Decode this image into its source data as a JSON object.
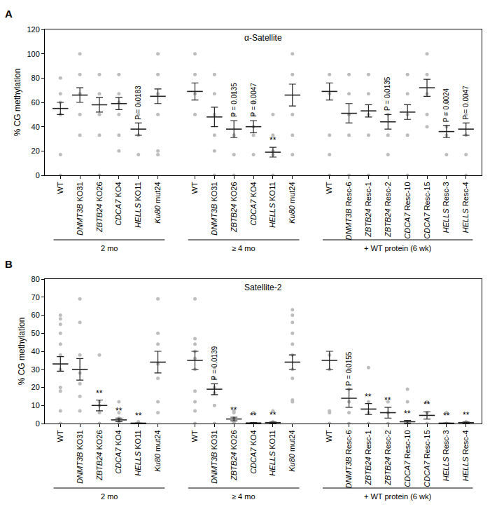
{
  "chart_data": [
    {
      "type": "scatter",
      "panel": "A",
      "title": "α-Satellite",
      "ylabel": "% CG methylation",
      "categories": [
        "WT",
        "DNMT3B KO31",
        "ZBTB24 KO26",
        "CDCA7 KO4",
        "HELLS KO11",
        "Ku80 mut24",
        "WT",
        "DNMT3B KO31",
        "ZBTB24 KO26",
        "CDCA7 KO4",
        "HELLS KO11",
        "Ku80 mut24",
        "WT",
        "DNMT3B Resc-6",
        "ZBTB24 Resc-1",
        "ZBTB24 Resc-2",
        "CDCA7 Resc-10",
        "CDCA7 Resc-15",
        "HELLS Resc-3",
        "HELLS Resc-4"
      ],
      "groups": [
        {
          "label": "2 mo",
          "size": 6
        },
        {
          "label": "≥ 4 mo",
          "size": 6
        },
        {
          "label": "+ WT protein (6 wk)",
          "size": 8
        }
      ],
      "ylim": [
        0,
        120
      ],
      "yticks": [
        0,
        20,
        40,
        60,
        80,
        100,
        120
      ],
      "grid": false,
      "series": [
        {
          "type": "strip",
          "marker": "circle",
          "color": "#bdbdbd",
          "values": [
            [
              0,
              17,
              50,
              50,
              60,
              67,
              80
            ],
            [
              33,
              50,
              67,
              83,
              100
            ],
            [
              0,
              33,
              50,
              67,
              83
            ],
            [
              20,
              33,
              50,
              60,
              67,
              83
            ],
            [
              17,
              33,
              50,
              60
            ],
            [
              17,
              20,
              50,
              67,
              83,
              100
            ],
            [
              50,
              67,
              83,
              100
            ],
            [
              0,
              20,
              33,
              50,
              67,
              83
            ],
            [
              0,
              17,
              33,
              50,
              67
            ],
            [
              17,
              33,
              40,
              50,
              60
            ],
            [
              0,
              17,
              20,
              33,
              50
            ],
            [
              17,
              33,
              50,
              83,
              100
            ],
            [
              0,
              17,
              33,
              67,
              83
            ],
            [
              0,
              33,
              50,
              67,
              83
            ],
            [
              0,
              33,
              50,
              67,
              83
            ],
            [
              17,
              33,
              50,
              67
            ],
            [
              0,
              33,
              50,
              67,
              83
            ],
            [
              40,
              50,
              67,
              83,
              100
            ],
            [
              17,
              33,
              40,
              50,
              60
            ],
            [
              0,
              17,
              33,
              50,
              67
            ]
          ]
        },
        {
          "type": "mean",
          "marker": "dash",
          "color": "#222222",
          "values": [
            55,
            66,
            58,
            59,
            38,
            65,
            69,
            48,
            38,
            40,
            19,
            66,
            69,
            51,
            53,
            44,
            52,
            72,
            36,
            38
          ],
          "errors": [
            5,
            6,
            6,
            5,
            5,
            6,
            7,
            8,
            7,
            5,
            4,
            9,
            7,
            8,
            5,
            6,
            6,
            7,
            5,
            5
          ]
        }
      ],
      "annotations": [
        null,
        null,
        null,
        null,
        "P = 0.0183",
        null,
        null,
        null,
        "P = 0.0135",
        "P = 0.0047",
        "**",
        null,
        null,
        null,
        null,
        "P = 0.0135",
        null,
        null,
        "P = 0.0024",
        "P = 0.0047"
      ]
    },
    {
      "type": "scatter",
      "panel": "B",
      "title": "Satellite-2",
      "ylabel": "% CG methylation",
      "categories": [
        "WT",
        "DNMT3B KO31",
        "ZBTB24 KO26",
        "CDCA7 KO4",
        "HELLS KO11",
        "Ku80 mut24",
        "WT",
        "DNMT3B KO31",
        "ZBTB24 KO26",
        "CDCA7 KO4",
        "HELLS KO11",
        "Ku80 mut24",
        "WT",
        "DNMT3B Resc-6",
        "ZBTB24 Resc-1",
        "ZBTB24 Resc-2",
        "CDCA7 Resc-10",
        "CDCA7 Resc-15",
        "HELLS Resc-3",
        "HELLS Resc-4"
      ],
      "groups": [
        {
          "label": "2 mo",
          "size": 6
        },
        {
          "label": "≥ 4 mo",
          "size": 6
        },
        {
          "label": "+ WT protein (6 wk)",
          "size": 8
        }
      ],
      "ylim": [
        0,
        80
      ],
      "yticks": [
        0,
        10,
        20,
        30,
        40,
        50,
        60,
        70,
        80
      ],
      "grid": false,
      "series": [
        {
          "type": "strip",
          "marker": "circle",
          "color": "#bdbdbd",
          "values": [
            [
              0,
              7,
              18,
              20,
              30,
              38,
              44,
              50,
              55,
              58,
              60
            ],
            [
              7,
              15,
              22,
              28,
              38,
              56,
              69
            ],
            [
              0,
              6,
              10,
              12,
              38
            ],
            [
              0,
              1,
              3,
              6,
              12
            ],
            [
              0,
              0,
              1
            ],
            [
              6,
              12,
              25,
              33,
              44,
              50,
              69
            ],
            [
              0,
              7,
              12,
              18,
              30,
              36,
              40,
              44,
              47,
              69
            ],
            [
              0,
              10,
              17,
              20,
              25,
              31
            ],
            [
              0,
              1,
              3,
              6,
              7
            ],
            [
              0,
              0,
              6
            ],
            [
              0,
              1,
              7
            ],
            [
              12,
              13,
              25,
              30,
              38,
              44,
              50,
              56,
              60,
              63
            ],
            [
              0,
              6,
              7,
              30,
              38
            ],
            [
              0,
              6,
              12,
              19,
              30
            ],
            [
              0,
              6,
              12,
              31
            ],
            [
              0,
              6,
              12
            ],
            [
              0,
              12,
              19
            ],
            [
              0,
              6,
              12
            ],
            [
              0,
              0,
              6
            ],
            [
              0,
              1
            ]
          ]
        },
        {
          "type": "mean",
          "marker": "dash",
          "color": "#222222",
          "values": [
            33,
            30,
            10,
            2,
            0.2,
            34,
            35,
            19,
            2.5,
            0.3,
            0.5,
            34,
            35,
            14,
            8,
            6,
            1,
            4.5,
            0.2,
            0.5
          ],
          "errors": [
            4,
            6,
            3,
            1,
            0.1,
            6,
            5,
            3,
            1,
            0.2,
            0.3,
            4,
            5,
            5,
            3,
            3,
            0.7,
            2,
            0.1,
            0.3
          ]
        }
      ],
      "annotations": [
        null,
        null,
        "**",
        "**",
        "**",
        null,
        null,
        "P = 0.0139",
        "**",
        "**",
        "**",
        null,
        null,
        "P = 0.0155",
        "**",
        "**",
        "**",
        "**",
        "**",
        "**"
      ]
    }
  ]
}
